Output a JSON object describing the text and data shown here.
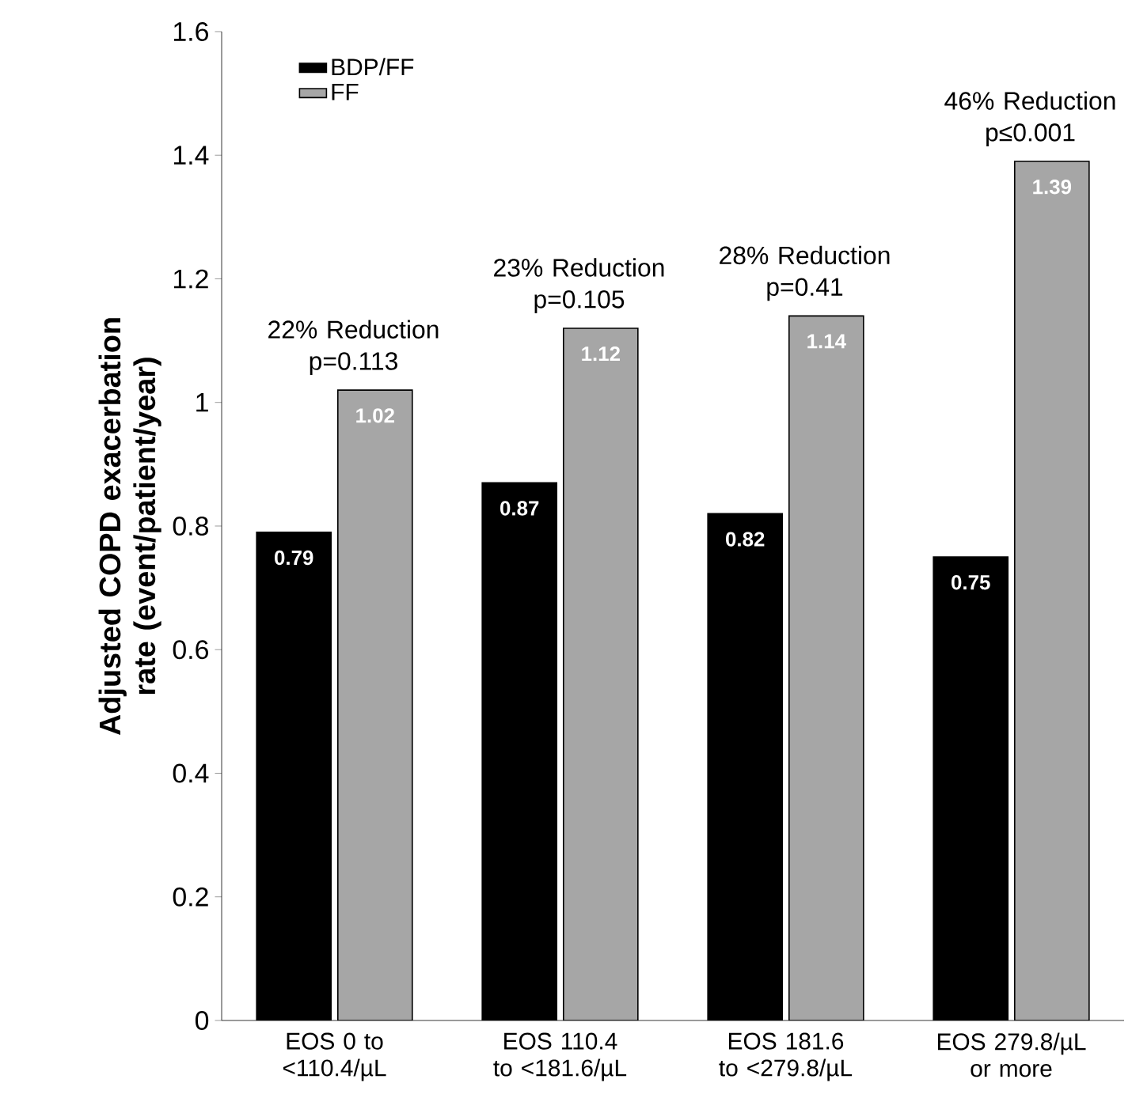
{
  "chart_data": {
    "type": "bar",
    "ylabel": "Adjusted COPD exacerbation rate (event/patient/year)",
    "categories": [
      "EOS 0 to <110.4/µL",
      "EOS 110.4 to <181.6/µL",
      "EOS 181.6 to <279.8/µL",
      "EOS 279.8/µL or more"
    ],
    "series": [
      {
        "name": "BDP/FF",
        "color": "#000000",
        "values": [
          0.79,
          0.87,
          0.82,
          0.75
        ]
      },
      {
        "name": "FF",
        "color": "#a6a6a6",
        "values": [
          1.02,
          1.12,
          1.14,
          1.39
        ]
      }
    ],
    "ylim": [
      0,
      1.6
    ],
    "yticks": [
      0,
      0.2,
      0.4,
      0.6,
      0.8,
      1,
      1.2,
      1.4,
      1.6
    ],
    "data_labels": true,
    "legend": "top left",
    "annotations": [
      "22% Reduction p=0.113",
      "23% Reduction p=0.105",
      "28% Reduction p=0.41",
      "46% Reduction p≤0.001"
    ]
  }
}
